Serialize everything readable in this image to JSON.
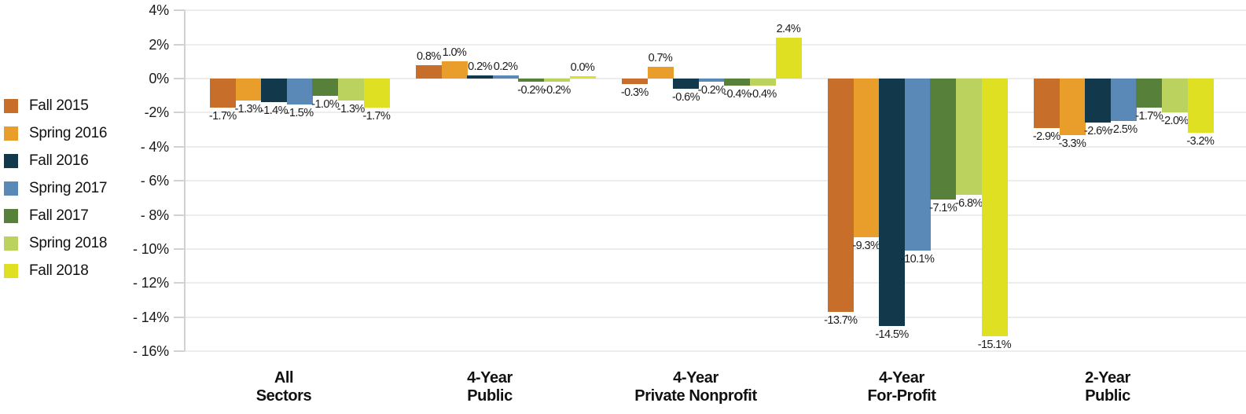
{
  "chart_data": {
    "type": "bar",
    "title": "",
    "legend_position": "left",
    "grid": true,
    "unit": "%",
    "categories": [
      "All Sectors",
      "4-Year Public",
      "4-Year Private Nonprofit",
      "4-Year For-Profit",
      "2-Year Public"
    ],
    "category_lines": [
      [
        "All",
        "Sectors"
      ],
      [
        "4-Year",
        "Public"
      ],
      [
        "4-Year",
        "Private Nonprofit"
      ],
      [
        "4-Year",
        "For-Profit"
      ],
      [
        "2-Year",
        "Public"
      ]
    ],
    "series": [
      {
        "name": "Fall 2015",
        "color": "#C76E2B",
        "values": [
          -1.7,
          0.8,
          -0.3,
          -13.7,
          -2.9
        ]
      },
      {
        "name": "Spring 2016",
        "color": "#E99D2B",
        "values": [
          -1.3,
          1.0,
          0.7,
          -9.3,
          -3.3
        ]
      },
      {
        "name": "Fall 2016",
        "color": "#11394B",
        "values": [
          -1.4,
          0.2,
          -0.6,
          -14.5,
          -2.6
        ]
      },
      {
        "name": "Spring 2017",
        "color": "#5A88B7",
        "values": [
          -1.5,
          0.2,
          -0.2,
          -10.1,
          -2.5
        ]
      },
      {
        "name": "Fall 2017",
        "color": "#57803A",
        "values": [
          -1.0,
          -0.2,
          -0.4,
          -7.1,
          -1.7
        ]
      },
      {
        "name": "Spring 2018",
        "color": "#BBD25F",
        "values": [
          -1.3,
          -0.2,
          -0.4,
          -6.8,
          -2.0
        ]
      },
      {
        "name": "Fall 2018",
        "color": "#DFE022",
        "values": [
          -1.7,
          0.0,
          2.4,
          -15.1,
          -3.2
        ]
      }
    ],
    "value_labels": [
      [
        "-1.7%",
        "0.8%",
        "-0.3%",
        "-13.7%",
        "-2.9%"
      ],
      [
        "-1.3%",
        "1.0%",
        "0.7%",
        "-9.3%",
        "-3.3%"
      ],
      [
        "-1.4%",
        "0.2%",
        "-0.6%",
        "-14.5%",
        "-2.6%"
      ],
      [
        "-1.5%",
        "0.2%",
        "-0.2%",
        "-10.1%",
        "-2.5%"
      ],
      [
        "-1.0%",
        "-0.2%",
        "-0.4%",
        "-7.1%",
        "-1.7%"
      ],
      [
        "-1.3%",
        "-0.2%",
        "-0.4%",
        "-6.8%",
        "-2.0%"
      ],
      [
        "-1.7%",
        "0.0%",
        "2.4%",
        "-15.1%",
        "-3.2%"
      ]
    ],
    "y_axis": {
      "min": -16,
      "max": 4,
      "step": 2,
      "ticks": [
        {
          "value": 4,
          "label": "4%"
        },
        {
          "value": 2,
          "label": "2%"
        },
        {
          "value": 0,
          "label": "0%"
        },
        {
          "value": -2,
          "label": "-2%"
        },
        {
          "value": -4,
          "label": "- 4%"
        },
        {
          "value": -6,
          "label": "- 6%"
        },
        {
          "value": -8,
          "label": "- 8%"
        },
        {
          "value": -10,
          "label": "- 10%"
        },
        {
          "value": -12,
          "label": "- 12%"
        },
        {
          "value": -14,
          "label": "- 14%"
        },
        {
          "value": -16,
          "label": "- 16%"
        }
      ]
    },
    "style_colors": {
      "gridline": "#ededed",
      "axis_line": "#d2d2d2",
      "text": "#1a1a1a"
    }
  }
}
